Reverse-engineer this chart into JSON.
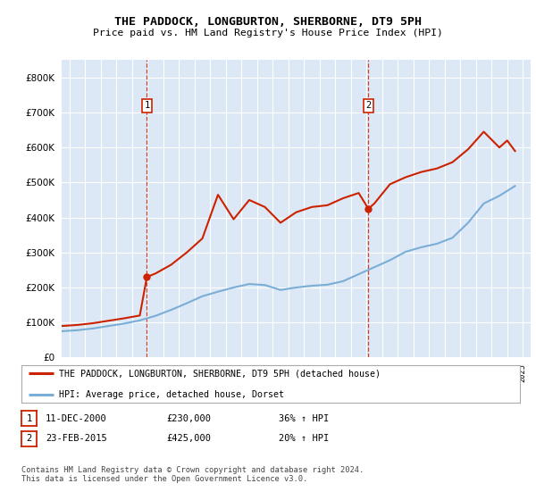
{
  "title": "THE PADDOCK, LONGBURTON, SHERBORNE, DT9 5PH",
  "subtitle": "Price paid vs. HM Land Registry's House Price Index (HPI)",
  "plot_bg_color": "#dce8f5",
  "ylim": [
    0,
    850000
  ],
  "yticks": [
    0,
    100000,
    200000,
    300000,
    400000,
    500000,
    600000,
    700000,
    800000
  ],
  "sale1_date": 2000.95,
  "sale1_price": 230000,
  "sale2_date": 2015.12,
  "sale2_price": 425000,
  "legend_red": "THE PADDOCK, LONGBURTON, SHERBORNE, DT9 5PH (detached house)",
  "legend_blue": "HPI: Average price, detached house, Dorset",
  "note1_label": "1",
  "note1_date": "11-DEC-2000",
  "note1_price": "£230,000",
  "note1_change": "36% ↑ HPI",
  "note2_label": "2",
  "note2_date": "23-FEB-2015",
  "note2_price": "£425,000",
  "note2_change": "20% ↑ HPI",
  "footer": "Contains HM Land Registry data © Crown copyright and database right 2024.\nThis data is licensed under the Open Government Licence v3.0.",
  "hpi_x": [
    1995.5,
    1996.5,
    1997.5,
    1998.5,
    1999.5,
    2000.5,
    2001.5,
    2002.5,
    2003.5,
    2004.5,
    2005.5,
    2006.5,
    2007.5,
    2008.5,
    2009.5,
    2010.5,
    2011.5,
    2012.5,
    2013.5,
    2014.5,
    2015.5,
    2016.5,
    2017.5,
    2018.5,
    2019.5,
    2020.5,
    2021.5,
    2022.5,
    2023.5,
    2024.5
  ],
  "hpi_y": [
    75000,
    78000,
    83000,
    90000,
    97000,
    106000,
    119000,
    136000,
    155000,
    175000,
    188000,
    200000,
    210000,
    207000,
    193000,
    200000,
    205000,
    208000,
    218000,
    238000,
    258000,
    278000,
    302000,
    315000,
    325000,
    342000,
    385000,
    440000,
    462000,
    490000
  ],
  "price_x": [
    1995.5,
    1996.5,
    1997.5,
    1998.5,
    1999.5,
    2000.5,
    2000.95,
    2001.5,
    2002.5,
    2003.5,
    2004.5,
    2005.5,
    2006.5,
    2007.5,
    2008.5,
    2009.5,
    2010.5,
    2011.5,
    2012.5,
    2013.5,
    2014.5,
    2015.12,
    2015.5,
    2016.5,
    2017.5,
    2018.5,
    2019.5,
    2020.5,
    2021.5,
    2022.5,
    2023.5,
    2024.0,
    2024.5
  ],
  "price_y": [
    90000,
    93000,
    98000,
    105000,
    112000,
    120000,
    230000,
    240000,
    265000,
    300000,
    340000,
    465000,
    395000,
    450000,
    430000,
    385000,
    415000,
    430000,
    435000,
    455000,
    470000,
    425000,
    440000,
    495000,
    515000,
    530000,
    540000,
    558000,
    595000,
    645000,
    600000,
    620000,
    590000
  ],
  "red_color": "#cc2200",
  "blue_color": "#7aaed6",
  "xmin": 1995.5,
  "xmax": 2025.5,
  "xtick_start": 1996,
  "xtick_end": 2025
}
